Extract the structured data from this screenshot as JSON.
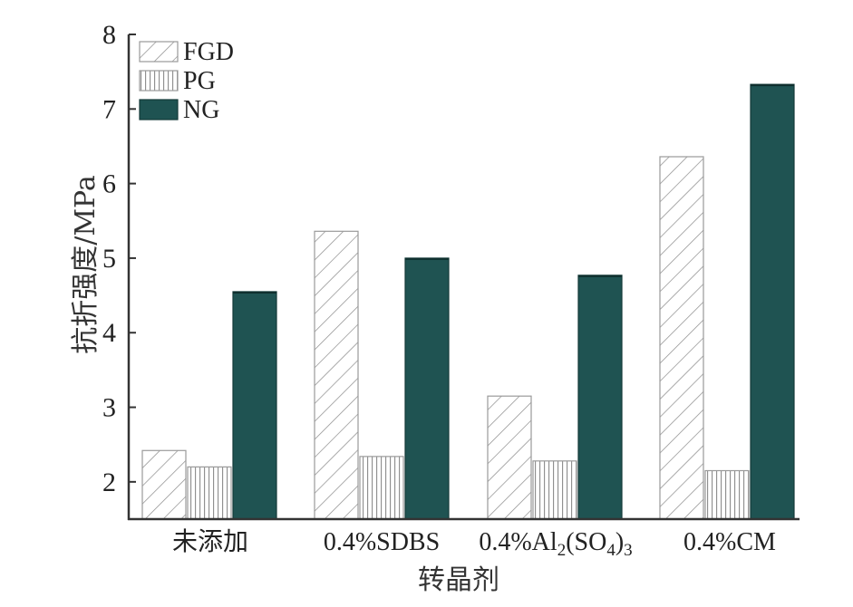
{
  "chart_data": {
    "type": "bar",
    "categories": [
      "未添加",
      "0.4%SDBS",
      "0.4%Al2(SO4)3",
      "0.4%CM"
    ],
    "series": [
      {
        "name": "FGD",
        "values": [
          2.42,
          5.36,
          3.15,
          6.36
        ],
        "color": "#ffffff",
        "pattern": "diagonal-hatch"
      },
      {
        "name": "PG",
        "values": [
          2.2,
          2.34,
          2.28,
          2.15
        ],
        "color": "#ffffff",
        "pattern": "vertical-hatch"
      },
      {
        "name": "NG",
        "values": [
          4.55,
          5.0,
          4.77,
          7.33
        ],
        "color": "#1f5352",
        "pattern": "solid"
      }
    ],
    "xlabel": "转晶剂",
    "ylabel": "抗折强度/MPa",
    "ylim": [
      1.5,
      8
    ],
    "yticks": [
      2,
      3,
      4,
      5,
      6,
      7,
      8
    ],
    "grid": false,
    "legend_position": "top-left"
  }
}
